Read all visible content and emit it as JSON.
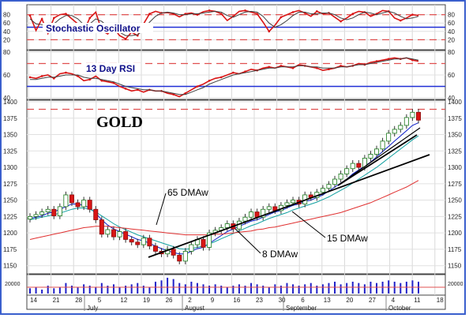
{
  "chart_data": [
    {
      "panel": "stochastic",
      "type": "line",
      "title": "Stochastic Oscillator",
      "ylim": [
        0,
        100
      ],
      "y_ticks": [
        20,
        40,
        60,
        80
      ],
      "reference_lines": [
        {
          "value": 80,
          "style": "dashed",
          "color": "#e05050"
        },
        {
          "value": 50,
          "style": "solid",
          "color": "#1f2fd6"
        },
        {
          "value": 20,
          "style": "dashed",
          "color": "#e05050"
        }
      ],
      "series": [
        {
          "color": "#d91515",
          "values": [
            78,
            42,
            70,
            35,
            72,
            80,
            82,
            70,
            58,
            40,
            72,
            86,
            42,
            34,
            48,
            30,
            22,
            38,
            30,
            58,
            82,
            88,
            84,
            85,
            82,
            75,
            82,
            84,
            80,
            87,
            90,
            88,
            82,
            66,
            76,
            88,
            90,
            86,
            82,
            62,
            40,
            55,
            74,
            80,
            86,
            90,
            84,
            76,
            88,
            82,
            84,
            74,
            64,
            72,
            82,
            88,
            86,
            76,
            82,
            90,
            88,
            72,
            66,
            72,
            80,
            78
          ]
        },
        {
          "color": "#404040",
          "values": [
            70,
            58,
            56,
            50,
            58,
            70,
            78,
            78,
            70,
            56,
            58,
            70,
            64,
            52,
            44,
            38,
            30,
            30,
            32,
            42,
            62,
            76,
            84,
            86,
            84,
            80,
            80,
            82,
            82,
            84,
            86,
            88,
            86,
            78,
            74,
            80,
            86,
            88,
            86,
            76,
            60,
            50,
            56,
            66,
            78,
            86,
            86,
            82,
            82,
            84,
            84,
            80,
            72,
            68,
            72,
            80,
            86,
            84,
            80,
            84,
            88,
            84,
            76,
            70,
            72,
            76
          ]
        }
      ]
    },
    {
      "panel": "rsi",
      "type": "line",
      "title": "13 Day RSI",
      "ylim": [
        40,
        80
      ],
      "y_ticks": [
        40,
        60,
        80
      ],
      "reference_lines": [
        {
          "value": 70,
          "style": "dashed",
          "color": "#e05050"
        },
        {
          "value": 50,
          "style": "solid",
          "color": "#1f2fd6"
        },
        {
          "value": 30,
          "style": "dashed",
          "color": "#e05050"
        }
      ],
      "series": [
        {
          "color": "#d91515",
          "values": [
            58,
            57,
            59,
            60,
            57,
            61,
            62,
            61,
            59,
            55,
            56,
            59,
            55,
            54,
            53,
            50,
            48,
            46,
            47,
            45,
            47,
            46,
            46,
            44,
            43,
            41,
            44,
            47,
            50,
            52,
            55,
            57,
            58,
            60,
            62,
            61,
            63,
            65,
            64,
            66,
            67,
            66,
            68,
            67,
            66,
            69,
            68,
            67,
            66,
            64,
            65,
            66,
            68,
            67,
            68,
            70,
            69,
            71,
            72,
            73,
            74,
            75,
            74,
            75,
            73,
            72
          ]
        },
        {
          "color": "#404040",
          "values": [
            56,
            56,
            57,
            58,
            58,
            59,
            60,
            60,
            60,
            58,
            57,
            57,
            56,
            55,
            54,
            52,
            50,
            49,
            48,
            47,
            47,
            46,
            46,
            45,
            44,
            43,
            43,
            45,
            47,
            49,
            52,
            54,
            56,
            58,
            60,
            61,
            62,
            63,
            64,
            65,
            66,
            66,
            67,
            67,
            67,
            68,
            68,
            67,
            67,
            66,
            66,
            66,
            67,
            67,
            68,
            69,
            69,
            70,
            71,
            72,
            73,
            74,
            74,
            75,
            74,
            73
          ]
        }
      ]
    },
    {
      "panel": "price",
      "type": "candlestick",
      "title": "GOLD",
      "ylim": [
        1140,
        1400
      ],
      "y_ticks": [
        1150,
        1175,
        1200,
        1225,
        1250,
        1275,
        1300,
        1325,
        1350,
        1375,
        1400
      ],
      "x_ticks": [
        "14",
        "21",
        "28",
        "5",
        "12",
        "19",
        "26",
        "2",
        "9",
        "16",
        "23",
        "30",
        "6",
        "13",
        "20",
        "27",
        "4",
        "11",
        "18"
      ],
      "month_labels": [
        "July",
        "August",
        "September",
        "October"
      ],
      "close": [
        1225,
        1228,
        1232,
        1236,
        1226,
        1240,
        1258,
        1246,
        1240,
        1250,
        1236,
        1220,
        1198,
        1205,
        1194,
        1202,
        1190,
        1186,
        1182,
        1192,
        1180,
        1172,
        1168,
        1175,
        1166,
        1157,
        1172,
        1182,
        1190,
        1178,
        1200,
        1204,
        1208,
        1214,
        1206,
        1218,
        1224,
        1232,
        1224,
        1236,
        1240,
        1234,
        1242,
        1246,
        1250,
        1244,
        1258,
        1254,
        1262,
        1268,
        1274,
        1282,
        1290,
        1298,
        1306,
        1300,
        1314,
        1320,
        1328,
        1340,
        1352,
        1358,
        1364,
        1376,
        1384,
        1372
      ],
      "series": [
        {
          "name": "8 DMAw",
          "color": "#0a1cc8",
          "values": [
            1222,
            1224,
            1226,
            1230,
            1232,
            1236,
            1240,
            1244,
            1244,
            1242,
            1238,
            1230,
            1220,
            1212,
            1206,
            1202,
            1198,
            1194,
            1190,
            1188,
            1184,
            1180,
            1176,
            1173,
            1170,
            1168,
            1168,
            1172,
            1176,
            1178,
            1184,
            1190,
            1196,
            1202,
            1206,
            1210,
            1214,
            1218,
            1220,
            1224,
            1228,
            1232,
            1234,
            1238,
            1242,
            1244,
            1248,
            1250,
            1254,
            1258,
            1264,
            1270,
            1276,
            1282,
            1290,
            1296,
            1302,
            1308,
            1316,
            1324,
            1332,
            1340,
            1348,
            1356,
            1364,
            1368
          ]
        },
        {
          "name": "15 DMAw",
          "color": "#10a0a0",
          "values": [
            1220,
            1222,
            1224,
            1226,
            1228,
            1230,
            1233,
            1236,
            1238,
            1238,
            1236,
            1232,
            1226,
            1220,
            1214,
            1209,
            1205,
            1201,
            1197,
            1194,
            1191,
            1188,
            1185,
            1182,
            1179,
            1176,
            1175,
            1176,
            1178,
            1180,
            1183,
            1187,
            1191,
            1195,
            1199,
            1203,
            1207,
            1211,
            1214,
            1218,
            1222,
            1225,
            1228,
            1231,
            1235,
            1238,
            1241,
            1244,
            1247,
            1251,
            1255,
            1260,
            1265,
            1270,
            1276,
            1282,
            1288,
            1294,
            1300,
            1307,
            1314,
            1321,
            1328,
            1335,
            1342,
            1348
          ]
        },
        {
          "name": "65 DMAw",
          "color": "#e03030",
          "values": [
            1190,
            1192,
            1194,
            1196,
            1198,
            1200,
            1202,
            1204,
            1206,
            1208,
            1209,
            1210,
            1210,
            1210,
            1209,
            1208,
            1207,
            1206,
            1205,
            1204,
            1203,
            1202,
            1201,
            1200,
            1199,
            1198,
            1197,
            1197,
            1197,
            1197,
            1197,
            1198,
            1198,
            1199,
            1200,
            1201,
            1202,
            1203,
            1205,
            1206,
            1208,
            1209,
            1211,
            1213,
            1215,
            1217,
            1219,
            1221,
            1223,
            1225,
            1227,
            1229,
            1231,
            1234,
            1237,
            1240,
            1243,
            1246,
            1250,
            1254,
            1258,
            1262,
            1266,
            1270,
            1275,
            1280
          ]
        }
      ],
      "annotations": [
        "65 DMAw",
        "15 DMAw",
        "8 DMAw"
      ]
    }
  ],
  "volume": {
    "y_label": "20000",
    "color": "#2020c8",
    "values": [
      4,
      5,
      3,
      6,
      4,
      5,
      8,
      6,
      5,
      7,
      6,
      5,
      8,
      6,
      7,
      5,
      6,
      7,
      8,
      6,
      5,
      9,
      10,
      12,
      11,
      8,
      7,
      9,
      8,
      7,
      6,
      7,
      6,
      5,
      6,
      7,
      6,
      8,
      7,
      6,
      5,
      7,
      6,
      8,
      7,
      6,
      7,
      8,
      6,
      7,
      8,
      9,
      7,
      8,
      9,
      8,
      7,
      9,
      8,
      9,
      10,
      9,
      8,
      9,
      10,
      9
    ]
  }
}
